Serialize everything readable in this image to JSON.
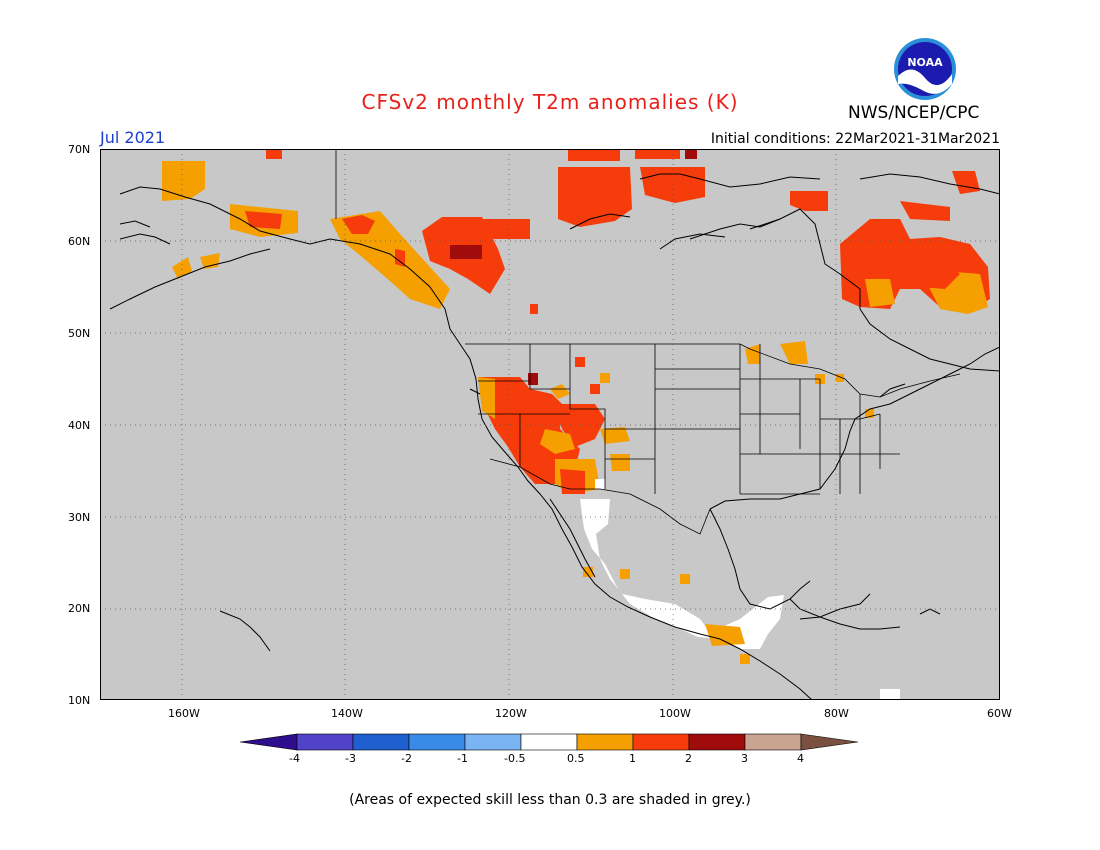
{
  "header": {
    "title": "CFSv2 monthly T2m anomalies (K)",
    "agency": "NWS/NCEP/CPC",
    "logo_text": "NOAA",
    "valid_month": "Jul 2021",
    "initial_conditions": "Initial conditions: 22Mar2021-31Mar2021"
  },
  "map": {
    "lat_labels": [
      "70N",
      "60N",
      "50N",
      "40N",
      "30N",
      "20N",
      "10N"
    ],
    "lon_labels": [
      "160W",
      "140W",
      "120W",
      "100W",
      "80W",
      "60W"
    ],
    "background_color": "#c8c8c8"
  },
  "colorbar": {
    "tick_labels": [
      "-4",
      "-3",
      "-2",
      "-1",
      "-0.5",
      "0.5",
      "1",
      "2",
      "3",
      "4"
    ],
    "colors": [
      "#2e0e8c",
      "#5043c9",
      "#1f5fd0",
      "#3a8be8",
      "#7ab4f2",
      "#ffffff",
      "#f5a000",
      "#f53c0a",
      "#a00c0c",
      "#c9a491",
      "#7a5040"
    ]
  },
  "footnote": "(Areas of expected skill less than 0.3 are shaded in grey.)"
}
